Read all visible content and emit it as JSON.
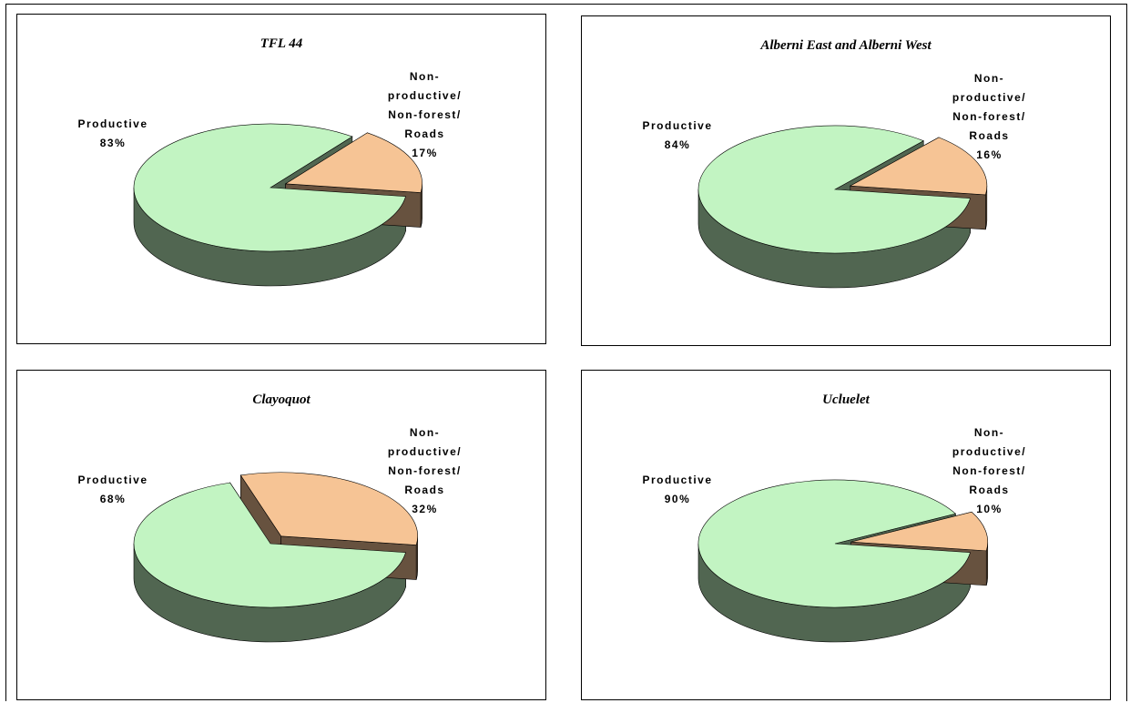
{
  "chart_data": [
    {
      "type": "pie",
      "title": "TFL 44",
      "categories": [
        "Productive",
        "Non-productive/ Non-forest/ Roads"
      ],
      "values": [
        83,
        17
      ],
      "value_labels": [
        "83%",
        "17%"
      ],
      "colors": [
        "#c2f4c2",
        "#f6c495"
      ]
    },
    {
      "type": "pie",
      "title": "Alberni East and Alberni West",
      "categories": [
        "Productive",
        "Non-productive/ Non-forest/ Roads"
      ],
      "values": [
        84,
        16
      ],
      "value_labels": [
        "84%",
        "16%"
      ],
      "colors": [
        "#c2f4c2",
        "#f6c495"
      ]
    },
    {
      "type": "pie",
      "title": "Clayoquot",
      "categories": [
        "Productive",
        "Non-productive/ Non-forest/ Roads"
      ],
      "values": [
        68,
        32
      ],
      "value_labels": [
        "68%",
        "32%"
      ],
      "colors": [
        "#c2f4c2",
        "#f6c495"
      ]
    },
    {
      "type": "pie",
      "title": "Ucluelet",
      "categories": [
        "Productive",
        "Non-productive/ Non-forest/ Roads"
      ],
      "values": [
        90,
        10
      ],
      "value_labels": [
        "90%",
        "10%"
      ],
      "colors": [
        "#c2f4c2",
        "#f6c495"
      ]
    }
  ]
}
